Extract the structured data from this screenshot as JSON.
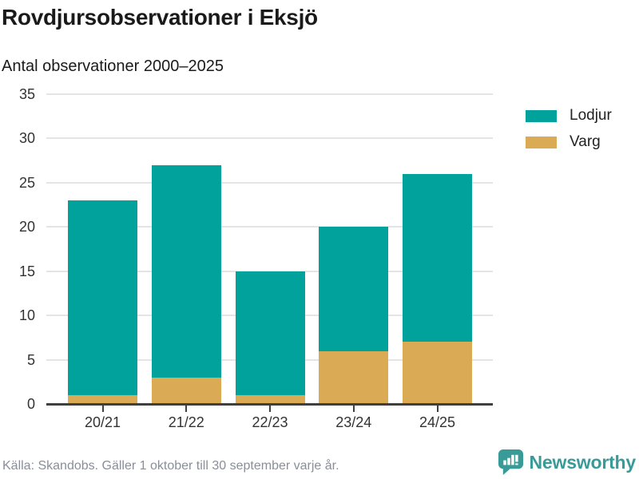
{
  "header": {
    "title": "Rovdjursobservationer i Eksjö",
    "subtitle": "Antal observationer 2000–2025"
  },
  "chart_data": {
    "type": "bar",
    "stacked": true,
    "title": "Rovdjursobservationer i Eksjö",
    "subtitle": "Antal observationer 2000–2025",
    "categories": [
      "20/21",
      "21/22",
      "22/23",
      "23/24",
      "24/25"
    ],
    "series": [
      {
        "name": "Lodjur",
        "color": "#00a29b",
        "values": [
          22,
          24,
          14,
          14,
          19
        ]
      },
      {
        "name": "Varg",
        "color": "#dbaa55",
        "values": [
          1,
          3,
          1,
          6,
          7
        ]
      }
    ],
    "stack_order_bottom_to_top": [
      "Varg",
      "Lodjur"
    ],
    "totals": [
      23,
      27,
      15,
      20,
      26
    ],
    "xlabel": "",
    "ylabel": "",
    "ylim": [
      0,
      35
    ],
    "yticks": [
      0,
      5,
      10,
      15,
      20,
      25,
      30,
      35
    ],
    "grid": true,
    "legend_position": "top-right"
  },
  "legend": {
    "items": [
      {
        "label": "Lodjur",
        "color": "#00a29b"
      },
      {
        "label": "Varg",
        "color": "#dbaa55"
      }
    ]
  },
  "footer": {
    "source": "Källa: Skandobs. Gäller 1 oktober till 30 september varje år.",
    "brand": "Newsworthy"
  },
  "colors": {
    "lodjur": "#00a29b",
    "varg": "#dbaa55",
    "axis": "#3f3f3f",
    "gridline": "#e4e4e4",
    "title_text": "#1a1a1a",
    "tick_label": "#333333",
    "footer_text": "#8a8e99",
    "brand_teal": "#389b98"
  }
}
